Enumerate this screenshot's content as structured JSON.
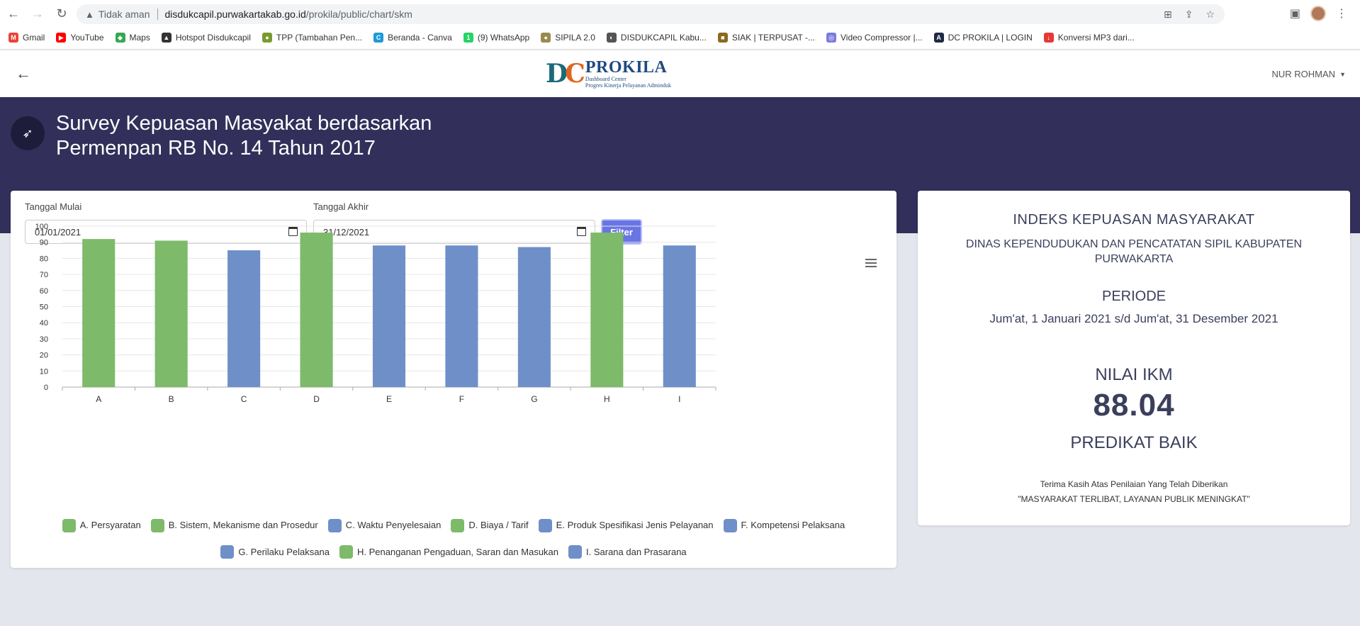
{
  "browser": {
    "insecure_label": "Tidak aman",
    "url_host": "disdukcapil.purwakartakab.go.id",
    "url_path": "/prokila/public/chart/skm",
    "bookmarks": [
      {
        "label": "Gmail",
        "color": "#ea4335",
        "icon": "M"
      },
      {
        "label": "YouTube",
        "color": "#ff0000",
        "icon": "▶"
      },
      {
        "label": "Maps",
        "color": "#34a853",
        "icon": "◆"
      },
      {
        "label": "Hotspot Disdukcapil",
        "color": "#333333",
        "icon": "▲"
      },
      {
        "label": "TPP (Tambahan Pen...",
        "color": "#7a9a2e",
        "icon": "●"
      },
      {
        "label": "Beranda - Canva",
        "color": "#1d9ad6",
        "icon": "C"
      },
      {
        "label": "(9) WhatsApp",
        "color": "#25d366",
        "icon": "1"
      },
      {
        "label": "SIPILA 2.0",
        "color": "#9a8a50",
        "icon": "●"
      },
      {
        "label": "DISDUKCAPIL Kabu...",
        "color": "#555555",
        "icon": "◐"
      },
      {
        "label": "SIAK | TERPUSAT -...",
        "color": "#8a6a1e",
        "icon": "■"
      },
      {
        "label": "Video Compressor |...",
        "color": "#7b7bdd",
        "icon": "◎"
      },
      {
        "label": "DC PROKILA | LOGIN",
        "color": "#1f2a44",
        "icon": "A"
      },
      {
        "label": "Konversi MP3 dari...",
        "color": "#e53935",
        "icon": "↓"
      }
    ]
  },
  "header": {
    "logo_name": "PROKILA",
    "logo_sub1": "Dashboard Center",
    "logo_sub2": "Progres Kinerja Pelayanan Adminduk",
    "user_name": "NUR ROHMAN"
  },
  "hero": {
    "title_line1": "Survey Kepuasan Masyakat berdasarkan",
    "title_line2": "Permenpan RB No. 14 Tahun 2017"
  },
  "filters": {
    "start_label": "Tanggal Mulai",
    "start_value": "01/01/2021",
    "end_label": "Tanggal Akhir",
    "end_value": "31/12/2021",
    "filter_button": "Filter"
  },
  "chart_data": {
    "type": "bar",
    "categories": [
      "A",
      "B",
      "C",
      "D",
      "E",
      "F",
      "G",
      "H",
      "I"
    ],
    "values": [
      92,
      91,
      85,
      96,
      88,
      88,
      87,
      96,
      88
    ],
    "bar_colors": [
      "#7dba69",
      "#7dba69",
      "#6f8fc8",
      "#7dba69",
      "#6f8fc8",
      "#6f8fc8",
      "#6f8fc8",
      "#7dba69",
      "#6f8fc8"
    ],
    "ylim": [
      0,
      100
    ],
    "yticks": [
      0,
      10,
      20,
      30,
      40,
      50,
      60,
      70,
      80,
      90,
      100
    ],
    "grid": true,
    "legend_placement": "bottom",
    "legend": [
      {
        "label": "A. Persyaratan",
        "color": "#7dba69"
      },
      {
        "label": "B. Sistem, Mekanisme dan Prosedur",
        "color": "#7dba69"
      },
      {
        "label": "C. Waktu Penyelesaian",
        "color": "#6f8fc8"
      },
      {
        "label": "D. Biaya / Tarif",
        "color": "#7dba69"
      },
      {
        "label": "E. Produk Spesifikasi Jenis Pelayanan",
        "color": "#6f8fc8"
      },
      {
        "label": "F. Kompetensi Pelaksana",
        "color": "#6f8fc8"
      },
      {
        "label": "G. Perilaku Pelaksana",
        "color": "#6f8fc8"
      },
      {
        "label": "H. Penanganan Pengaduan, Saran dan Masukan",
        "color": "#7dba69"
      },
      {
        "label": "I. Sarana dan Prasarana",
        "color": "#6f8fc8"
      }
    ]
  },
  "ikm": {
    "title": "INDEKS KEPUASAN MASYARAKAT",
    "office": "DINAS KEPENDUDUKAN DAN PENCATATAN SIPIL KABUPATEN PURWAKARTA",
    "periode_label": "PERIODE",
    "periode_value": "Jum'at, 1 Januari 2021 s/d Jum'at, 31 Desember 2021",
    "nilai_label": "NILAI IKM",
    "nilai_value": "88.04",
    "predikat": "PREDIKAT BAIK",
    "thanks_line1": "Terima Kasih Atas Penilaian Yang Telah Diberikan",
    "thanks_line2": "\"MASYARAKAT TERLIBAT, LAYANAN PUBLIK MENINGKAT\""
  }
}
